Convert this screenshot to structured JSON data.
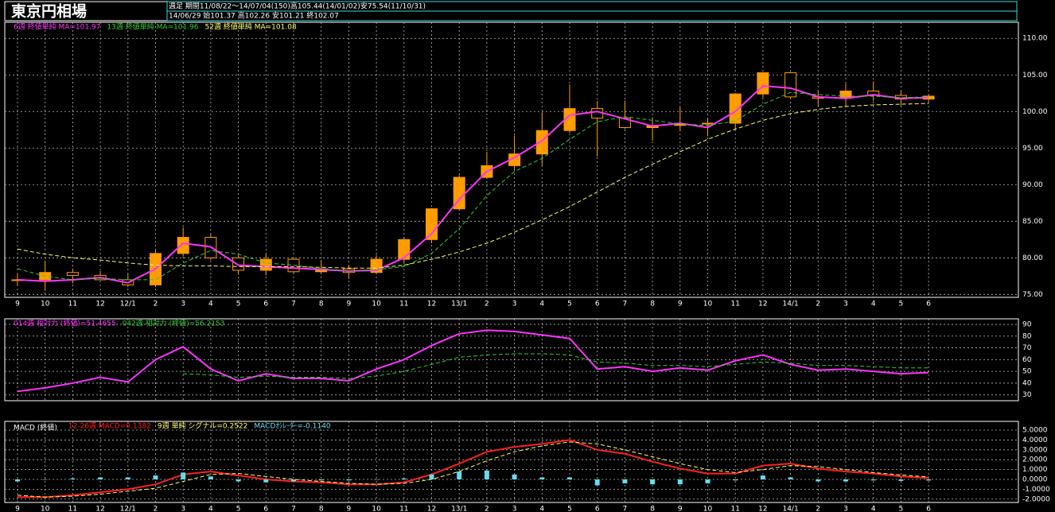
{
  "header": {
    "title": "東京円相場",
    "line1": "週足  期間11/08/22～14/07/04(150)高105.44(14/01/02)安75.54(11/10/31)",
    "line2": "14/06/29    始101.37 高102.26 安101.21 終102.07"
  },
  "chart_data": [
    {
      "type": "candlestick",
      "grid": true,
      "up_color": "#ff9c00",
      "categories": [
        "9",
        "10",
        "11",
        "12",
        "12/1",
        "2",
        "3",
        "4",
        "5",
        "6",
        "7",
        "8",
        "9",
        "10",
        "11",
        "12",
        "13/1",
        "2",
        "3",
        "4",
        "5",
        "6",
        "7",
        "8",
        "9",
        "10",
        "11",
        "12",
        "14/1",
        "2",
        "3",
        "4",
        "5",
        "6"
      ],
      "open": [
        77.0,
        77.0,
        78.0,
        77.6,
        77.0,
        76.3,
        80.6,
        82.8,
        80.0,
        78.3,
        79.8,
        78.1,
        78.5,
        78.0,
        79.8,
        82.5,
        86.7,
        91.0,
        92.6,
        94.2,
        97.4,
        100.4,
        99.1,
        97.8,
        98.1,
        98.3,
        98.4,
        102.4,
        105.3,
        102.0,
        101.8,
        102.8,
        102.2,
        101.7
      ],
      "high": [
        77.8,
        79.5,
        78.5,
        78.2,
        77.8,
        81.0,
        84.2,
        83.3,
        80.5,
        80.6,
        80.0,
        79.7,
        79.0,
        80.4,
        82.8,
        86.8,
        91.3,
        94.5,
        96.7,
        99.9,
        103.7,
        101.4,
        101.5,
        99.2,
        100.6,
        99.0,
        102.5,
        105.4,
        105.4,
        102.8,
        103.8,
        104.1,
        102.8,
        102.3
      ],
      "low": [
        76.2,
        75.5,
        76.5,
        77.0,
        76.0,
        76.0,
        80.2,
        79.7,
        77.7,
        77.6,
        77.9,
        77.9,
        77.1,
        77.8,
        79.2,
        82.0,
        86.5,
        90.8,
        92.0,
        92.6,
        97.1,
        93.8,
        97.6,
        96.0,
        97.3,
        96.6,
        97.6,
        101.9,
        101.8,
        100.8,
        100.7,
        101.4,
        100.8,
        101.2
      ],
      "close": [
        77.0,
        78.0,
        77.6,
        77.0,
        76.3,
        80.6,
        82.8,
        80.0,
        78.3,
        79.8,
        78.1,
        78.5,
        78.0,
        79.8,
        82.5,
        86.7,
        91.0,
        92.6,
        94.2,
        97.4,
        100.4,
        99.1,
        97.8,
        98.1,
        98.3,
        98.4,
        102.4,
        105.3,
        102.0,
        101.8,
        102.8,
        102.2,
        101.7,
        102.1
      ],
      "series": [
        {
          "name": "6週 終値単純 MA=101.97",
          "color": "#ff33ff",
          "dash": false,
          "values": [
            77.0,
            76.8,
            77.0,
            77.3,
            76.6,
            78.5,
            82.0,
            81.5,
            79.0,
            78.8,
            78.6,
            78.4,
            78.2,
            78.3,
            80.0,
            83.3,
            88.0,
            91.8,
            93.7,
            96.0,
            99.5,
            100.0,
            99.0,
            98.0,
            98.4,
            97.8,
            100.0,
            103.5,
            103.2,
            102.0,
            101.8,
            102.3,
            101.8,
            101.9
          ]
        },
        {
          "name": "13週 終値単純 MA=101.96",
          "color": "#33cc33",
          "dash": true,
          "values": [
            78.5,
            77.5,
            77.0,
            77.2,
            77.0,
            77.0,
            79.3,
            81.0,
            80.5,
            79.3,
            79.0,
            78.5,
            78.2,
            78.4,
            78.8,
            80.6,
            84.0,
            88.5,
            91.8,
            93.6,
            96.2,
            98.6,
            99.3,
            98.8,
            98.3,
            98.1,
            98.7,
            101.0,
            102.6,
            102.3,
            102.1,
            102.1,
            101.9,
            102.0
          ]
        },
        {
          "name": "52週 終値単純 MA=101.08",
          "color": "#ffff66",
          "dash": true,
          "values": [
            81.2,
            80.5,
            80.0,
            79.7,
            79.3,
            79.0,
            78.9,
            78.9,
            78.8,
            78.8,
            78.8,
            78.7,
            78.6,
            78.6,
            79.0,
            79.8,
            80.8,
            82.0,
            83.5,
            85.2,
            87.0,
            89.0,
            91.0,
            92.8,
            94.5,
            96.2,
            97.6,
            98.8,
            99.7,
            100.3,
            100.7,
            100.9,
            101.0,
            101.1
          ]
        }
      ],
      "ylim": [
        74.6,
        112.2
      ],
      "yticks": [
        {
          "value": 75,
          "label": "75.00"
        },
        {
          "value": 80,
          "label": "80.00"
        },
        {
          "value": 85,
          "label": "85.00"
        },
        {
          "value": 90,
          "label": "90.00"
        },
        {
          "value": 95,
          "label": "95.00"
        },
        {
          "value": 100,
          "label": "100.00"
        },
        {
          "value": 105,
          "label": "105.00"
        },
        {
          "value": 110,
          "label": "110.00"
        }
      ]
    },
    {
      "type": "line",
      "grid": true,
      "series": [
        {
          "name": "014週 相対力 (終値)=51.4655",
          "color": "#ff33ff",
          "dash": false,
          "values": [
            33,
            36,
            40,
            45,
            41,
            60,
            71,
            52,
            42,
            48,
            44,
            44,
            42,
            52,
            60,
            72,
            82,
            85,
            84,
            81,
            78,
            52,
            54,
            50,
            53,
            51,
            59,
            64,
            56,
            51,
            52,
            50,
            48,
            49
          ]
        },
        {
          "name": "042週 相対力 (終値)=56.2153",
          "color": "#33cc33",
          "dash": true,
          "values": [
            null,
            null,
            null,
            null,
            null,
            null,
            48,
            47,
            45,
            46,
            45,
            45,
            44,
            46,
            50,
            56,
            62,
            64,
            65,
            65,
            64,
            58,
            57,
            55,
            55,
            54,
            56,
            58,
            57,
            55,
            55,
            54,
            53,
            53
          ]
        }
      ],
      "ylim": [
        25.1,
        94.7
      ],
      "yticks": [
        30,
        40,
        50,
        60,
        70,
        80,
        90
      ]
    },
    {
      "type": "combo",
      "grid": true,
      "title": "MACD (終値)",
      "categories": [
        "9",
        "10",
        "11",
        "12",
        "12/1",
        "2",
        "3",
        "4",
        "5",
        "6",
        "7",
        "8",
        "9",
        "10",
        "11",
        "12",
        "13/1",
        "2",
        "3",
        "4",
        "5",
        "6",
        "7",
        "8",
        "9",
        "10",
        "11",
        "12",
        "14/1",
        "2",
        "3",
        "4",
        "5",
        "6"
      ],
      "series": [
        {
          "name": "12-26週 MACD=0.1382",
          "color": "#ff2020",
          "kind": "line",
          "dash": false,
          "values": [
            -1.8,
            -1.8,
            -1.6,
            -1.3,
            -1.0,
            -0.5,
            0.5,
            0.8,
            0.4,
            0.0,
            -0.2,
            -0.3,
            -0.5,
            -0.5,
            -0.3,
            0.5,
            1.6,
            2.8,
            3.3,
            3.6,
            4.0,
            3.0,
            2.6,
            1.8,
            1.1,
            0.6,
            0.6,
            1.4,
            1.6,
            1.1,
            0.8,
            0.6,
            0.3,
            0.14
          ]
        },
        {
          "name": "9週 単純 シグナル=0.2522",
          "color": "#ffff66",
          "kind": "line",
          "dash": true,
          "values": [
            -1.6,
            -1.8,
            -1.7,
            -1.5,
            -1.2,
            -0.9,
            -0.2,
            0.5,
            0.6,
            0.3,
            0.0,
            -0.2,
            -0.4,
            -0.5,
            -0.4,
            0.0,
            0.8,
            1.9,
            2.8,
            3.4,
            3.8,
            3.6,
            3.0,
            2.3,
            1.6,
            1.0,
            0.7,
            1.0,
            1.4,
            1.3,
            1.0,
            0.7,
            0.45,
            0.25
          ]
        },
        {
          "name": "MACDｵｼﾚｰﾀｰ=-0.1140",
          "color": "#66ddee",
          "kind": "bar",
          "dash": false,
          "values": [
            -0.2,
            0.0,
            0.1,
            0.2,
            0.2,
            0.4,
            0.7,
            0.3,
            -0.2,
            -0.3,
            -0.2,
            -0.1,
            -0.1,
            0.0,
            0.1,
            0.5,
            0.8,
            0.9,
            0.5,
            0.2,
            0.2,
            -0.6,
            -0.4,
            -0.5,
            -0.5,
            -0.4,
            -0.1,
            0.4,
            0.2,
            -0.2,
            -0.2,
            -0.1,
            -0.15,
            -0.11
          ]
        }
      ],
      "ylim": [
        -2.34,
        5.89
      ],
      "yticks": [
        {
          "value": -2,
          "label": "-2.0000"
        },
        {
          "value": -1,
          "label": "-1.0000"
        },
        {
          "value": 0,
          "label": "0.0000"
        },
        {
          "value": 1,
          "label": "1.0000"
        },
        {
          "value": 2,
          "label": "2.0000"
        },
        {
          "value": 3,
          "label": "3.0000"
        },
        {
          "value": 4,
          "label": "4.0000"
        },
        {
          "value": 5,
          "label": "5.0000"
        }
      ]
    }
  ]
}
